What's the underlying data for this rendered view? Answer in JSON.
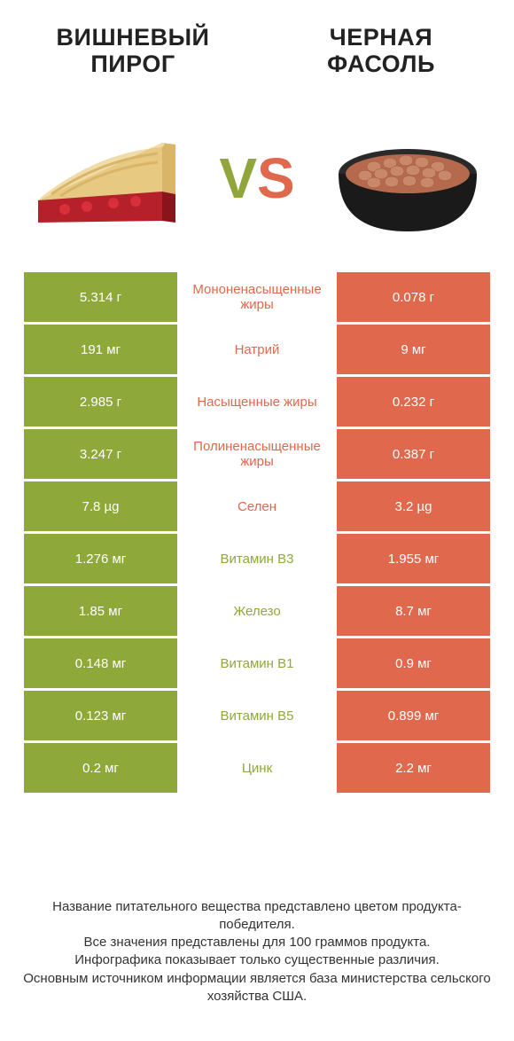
{
  "titles": {
    "left": "ВИШНЕВЫЙ ПИРОГ",
    "right": "ЧЕРНАЯ ФАСОЛЬ"
  },
  "vs": {
    "left": "V",
    "right": "S"
  },
  "colors": {
    "green": "#8ea83a",
    "orange": "#e0684c"
  },
  "rows": [
    {
      "left": "5.314 г",
      "label": "Мононенасыщенные жиры",
      "right": "0.078 г",
      "winner": "left"
    },
    {
      "left": "191 мг",
      "label": "Натрий",
      "right": "9 мг",
      "winner": "left"
    },
    {
      "left": "2.985 г",
      "label": "Насыщенные жиры",
      "right": "0.232 г",
      "winner": "left"
    },
    {
      "left": "3.247 г",
      "label": "Полиненасыщенные жиры",
      "right": "0.387 г",
      "winner": "left"
    },
    {
      "left": "7.8 µg",
      "label": "Селен",
      "right": "3.2 µg",
      "winner": "left"
    },
    {
      "left": "1.276 мг",
      "label": "Витамин B3",
      "right": "1.955 мг",
      "winner": "right"
    },
    {
      "left": "1.85 мг",
      "label": "Железо",
      "right": "8.7 мг",
      "winner": "right"
    },
    {
      "left": "0.148 мг",
      "label": "Витамин B1",
      "right": "0.9 мг",
      "winner": "right"
    },
    {
      "left": "0.123 мг",
      "label": "Витамин B5",
      "right": "0.899 мг",
      "winner": "right"
    },
    {
      "left": "0.2 мг",
      "label": "Цинк",
      "right": "2.2 мг",
      "winner": "right"
    }
  ],
  "footer": [
    "Название питательного вещества представлено цветом продукта-победителя.",
    "Все значения представлены для 100 граммов продукта.",
    "Инфографика показывает только существенные различия.",
    "Основным источником информации является база министерства сельского хозяйства США."
  ]
}
